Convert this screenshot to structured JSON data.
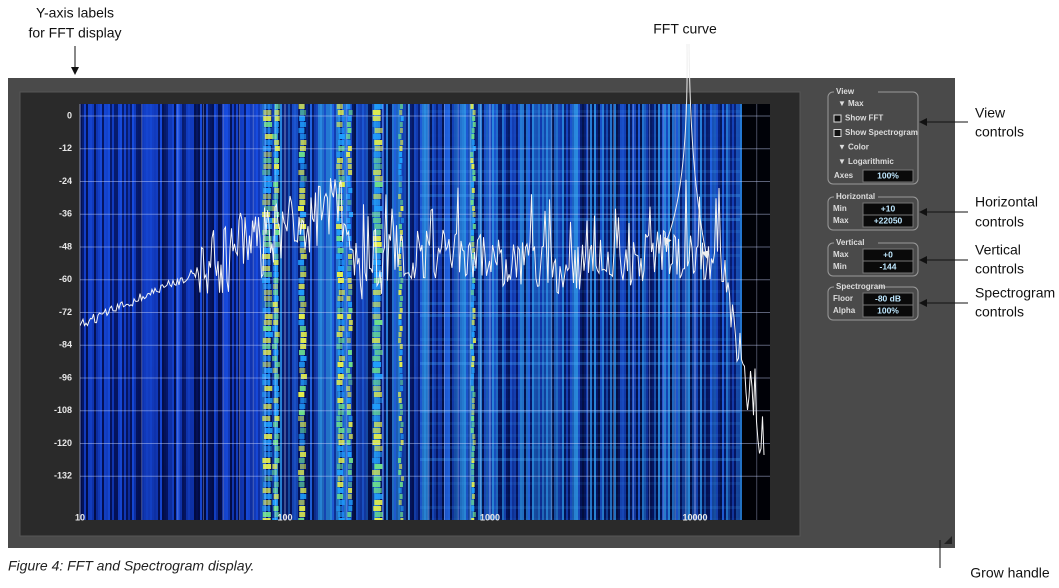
{
  "annotations": {
    "y_axis_labels": [
      "Y-axis labels",
      "for FFT display"
    ],
    "fft_curve": "FFT curve",
    "view_controls": [
      "View",
      "controls"
    ],
    "horizontal_controls": [
      "Horizontal",
      "controls"
    ],
    "vertical_controls": [
      "Vertical",
      "controls"
    ],
    "spectrogram_controls": [
      "Spectrogram",
      "controls"
    ],
    "grow_handle": "Grow handle"
  },
  "display": {
    "y_labels": [
      "0",
      "-12",
      "-24",
      "-36",
      "-48",
      "-60",
      "-72",
      "-84",
      "-96",
      "-108",
      "-120",
      "-132"
    ],
    "x_labels": [
      "10",
      "100",
      "1000",
      "10000"
    ]
  },
  "controls": {
    "view": {
      "title": "View",
      "items": [
        "Max",
        "Show FFT",
        "Show Spectrogram",
        "Color",
        "Logarithmic"
      ],
      "axes_label": "Axes",
      "axes_value": "100%"
    },
    "horizontal": {
      "title": "Horizontal",
      "rows": [
        {
          "label": "Min",
          "value": "+10"
        },
        {
          "label": "Max",
          "value": "+22050"
        }
      ]
    },
    "vertical": {
      "title": "Vertical",
      "rows": [
        {
          "label": "Max",
          "value": "+0"
        },
        {
          "label": "Min",
          "value": "-144"
        }
      ]
    },
    "spectrogram": {
      "title": "Spectrogram",
      "rows": [
        {
          "label": "Floor",
          "value": "-80 dB"
        },
        {
          "label": "Alpha",
          "value": "100%"
        }
      ]
    }
  },
  "caption": "Figure 4: FFT and Spectrogram display."
}
